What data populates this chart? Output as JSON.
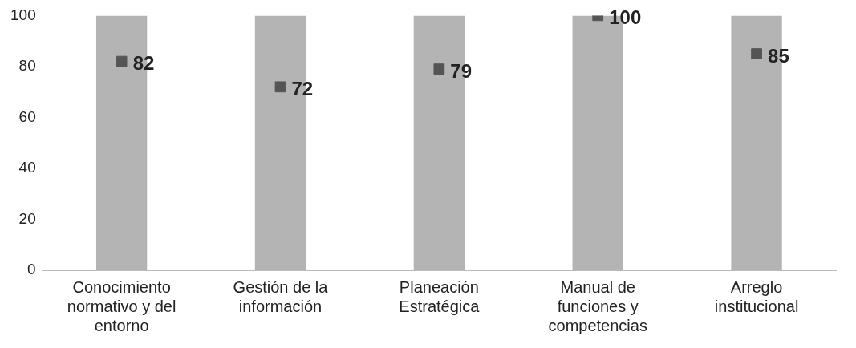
{
  "chart_data": {
    "type": "bar",
    "categories": [
      "Conocimiento normativo y del entorno",
      "Gestión de la información",
      "Planeación Estratégica",
      "Manual de funciones y competencias",
      "Arreglo institucional"
    ],
    "series": [
      {
        "color": "#b4b4b4",
        "values": [
          100,
          100,
          100,
          100,
          100
        ]
      },
      {
        "type": "scatter",
        "color": "#555555",
        "marker": "square",
        "values": [
          82,
          72,
          79,
          100,
          85
        ],
        "value_labels": [
          "82",
          "72",
          "79",
          "100",
          "85"
        ]
      }
    ],
    "ylim": [
      0,
      100
    ],
    "yticks": [
      0,
      20,
      40,
      60,
      80,
      100
    ],
    "grid": false,
    "legend": false
  }
}
